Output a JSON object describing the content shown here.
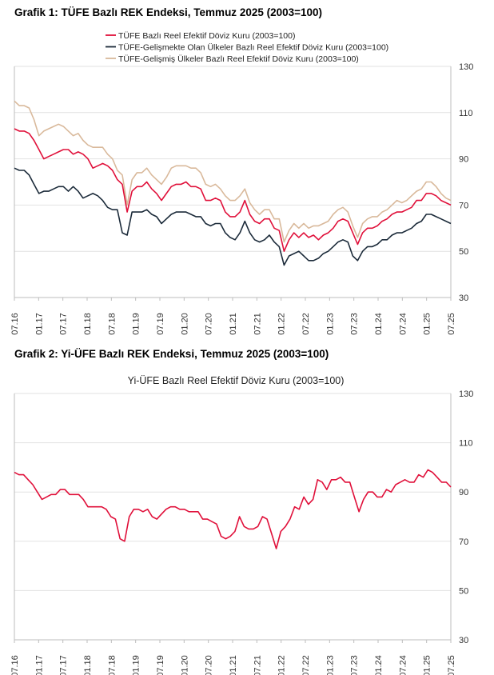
{
  "page": {
    "heading1": "Grafik 1: TÜFE Bazlı REK Endeksi, Temmuz 2025 (2003=100)",
    "heading2": "Grafik 2: Yi-ÜFE Bazlı REK Endeksi, Temmuz 2025 (2003=100)"
  },
  "chart_data": [
    {
      "type": "line",
      "title": "",
      "xlabel": "",
      "ylabel": "",
      "ylim": [
        30,
        130
      ],
      "yticks": [
        30,
        50,
        70,
        90,
        110,
        130
      ],
      "x_tick_labels": [
        "07.16",
        "01.17",
        "07.17",
        "01.18",
        "07.18",
        "01.19",
        "07.19",
        "01.20",
        "07.20",
        "01.21",
        "07.21",
        "01.22",
        "07.22",
        "01.23",
        "07.23",
        "01.24",
        "07.24",
        "01.25",
        "07.25"
      ],
      "legend_position": "top",
      "series": [
        {
          "name": "TÜFE  Bazlı Reel Efektif Döviz Kuru (2003=100)",
          "color": "#e0103a",
          "values": [
            103,
            102,
            102,
            101,
            98,
            94,
            90,
            91,
            92,
            93,
            94,
            94,
            92,
            93,
            92,
            90,
            86,
            87,
            88,
            87,
            85,
            81,
            79,
            67,
            76,
            78,
            78,
            80,
            77,
            75,
            72,
            75,
            78,
            79,
            79,
            80,
            78,
            78,
            77,
            72,
            72,
            73,
            72,
            67,
            65,
            65,
            67,
            72,
            66,
            63,
            62,
            64,
            64,
            60,
            59,
            50,
            55,
            58,
            56,
            58,
            56,
            57,
            55,
            57,
            58,
            60,
            63,
            64,
            63,
            58,
            53,
            58,
            60,
            60,
            61,
            63,
            64,
            66,
            67,
            67,
            68,
            69,
            72,
            72,
            75,
            75,
            74,
            72,
            71,
            70
          ]
        },
        {
          "name": "TÜFE-Gelişmekte Olan Ülkeler Bazlı Reel Efektif Döviz Kuru (2003=100)",
          "color": "#1c2b3a",
          "values": [
            86,
            85,
            85,
            83,
            79,
            75,
            76,
            76,
            77,
            78,
            78,
            76,
            78,
            76,
            73,
            74,
            75,
            74,
            72,
            69,
            68,
            68,
            58,
            57,
            67,
            67,
            67,
            68,
            66,
            65,
            62,
            64,
            66,
            67,
            67,
            67,
            66,
            65,
            65,
            62,
            61,
            62,
            62,
            58,
            56,
            55,
            58,
            63,
            58,
            55,
            54,
            55,
            57,
            54,
            52,
            44,
            48,
            49,
            50,
            48,
            46,
            46,
            47,
            49,
            50,
            52,
            54,
            55,
            54,
            48,
            46,
            50,
            52,
            52,
            53,
            55,
            55,
            57,
            58,
            58,
            59,
            60,
            62,
            63,
            66,
            66,
            65,
            64,
            63,
            62
          ]
        },
        {
          "name": "TÜFE-Gelişmiş Ülkeler Bazlı Reel Efektif Döviz Kuru (2003=100)",
          "color": "#d9b99b",
          "values": [
            115,
            113,
            113,
            112,
            107,
            100,
            102,
            103,
            104,
            105,
            104,
            102,
            100,
            101,
            98,
            96,
            95,
            95,
            95,
            92,
            90,
            85,
            83,
            70,
            81,
            84,
            84,
            86,
            83,
            81,
            79,
            82,
            86,
            87,
            87,
            87,
            86,
            86,
            84,
            79,
            78,
            79,
            77,
            74,
            72,
            72,
            74,
            77,
            71,
            68,
            66,
            68,
            68,
            64,
            64,
            54,
            59,
            62,
            60,
            62,
            60,
            61,
            61,
            62,
            63,
            66,
            68,
            69,
            67,
            61,
            56,
            62,
            64,
            65,
            65,
            67,
            68,
            70,
            72,
            71,
            72,
            74,
            76,
            77,
            80,
            80,
            78,
            75,
            73,
            72
          ]
        }
      ]
    },
    {
      "type": "line",
      "title": "Yi-ÜFE Bazlı Reel Efektif Döviz Kuru (2003=100)",
      "xlabel": "",
      "ylabel": "",
      "ylim": [
        30,
        130
      ],
      "yticks": [
        30,
        50,
        70,
        90,
        110,
        130
      ],
      "x_tick_labels": [
        "07.16",
        "01.17",
        "07.17",
        "01.18",
        "07.18",
        "01.19",
        "07.19",
        "01.20",
        "07.20",
        "01.21",
        "07.21",
        "01.22",
        "07.22",
        "01.23",
        "07.23",
        "01.24",
        "07.24",
        "01.25",
        "07.25"
      ],
      "legend_position": "none",
      "series": [
        {
          "name": "Yi-ÜFE Bazlı Reel Efektif Döviz Kuru (2003=100)",
          "color": "#e0103a",
          "values": [
            98,
            97,
            97,
            95,
            93,
            90,
            87,
            88,
            89,
            89,
            91,
            91,
            89,
            89,
            89,
            87,
            84,
            84,
            84,
            84,
            83,
            80,
            79,
            71,
            70,
            80,
            83,
            83,
            82,
            83,
            80,
            79,
            81,
            83,
            84,
            84,
            83,
            83,
            82,
            82,
            82,
            79,
            79,
            78,
            77,
            72,
            71,
            72,
            74,
            80,
            76,
            75,
            75,
            76,
            80,
            79,
            73,
            67,
            74,
            76,
            79,
            84,
            83,
            88,
            85,
            87,
            95,
            94,
            91,
            95,
            95,
            96,
            94,
            94,
            88,
            82,
            87,
            90,
            90,
            88,
            88,
            91,
            90,
            93,
            94,
            95,
            94,
            94,
            97,
            96,
            99,
            98,
            96,
            94,
            94,
            92
          ]
        }
      ]
    }
  ]
}
